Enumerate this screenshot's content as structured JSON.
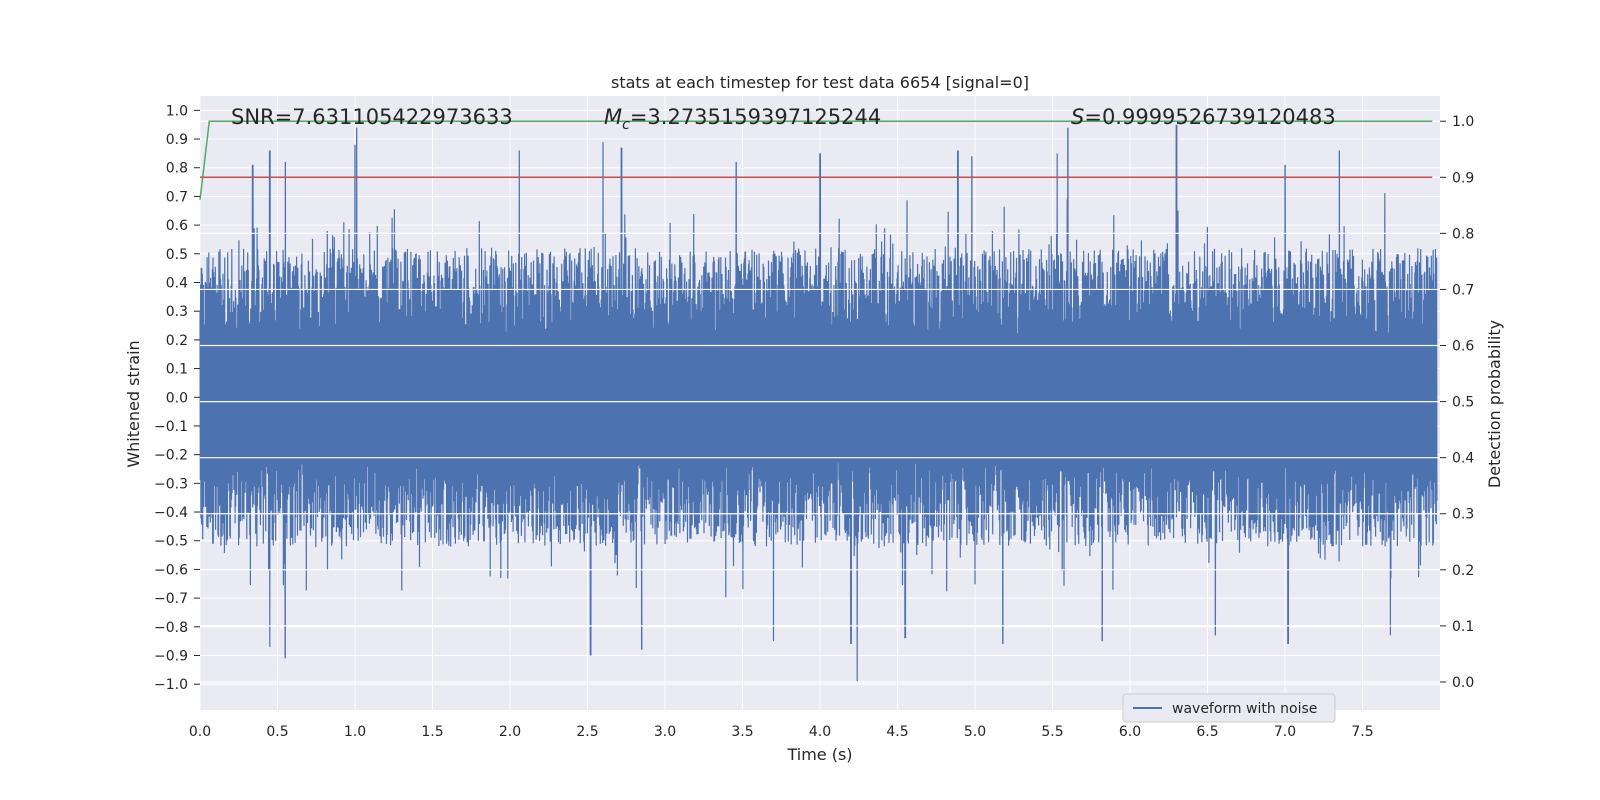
{
  "chart_data": {
    "type": "line",
    "title": "stats at each timestep for test data 6654 [signal=0]",
    "xlabel": "Time (s)",
    "ylabel": "Whitened strain",
    "y2label": "Detection probability",
    "xlim": [
      0.0,
      8.0
    ],
    "ylim": [
      -1.09,
      1.05
    ],
    "y2lim": [
      -0.05,
      1.045
    ],
    "x_ticks": [
      "0.0",
      "0.5",
      "1.0",
      "1.5",
      "2.0",
      "2.5",
      "3.0",
      "3.5",
      "4.0",
      "4.5",
      "5.0",
      "5.5",
      "6.0",
      "6.5",
      "7.0",
      "7.5"
    ],
    "y_ticks": [
      "1.0",
      "0.9",
      "0.8",
      "0.7",
      "0.6",
      "0.5",
      "0.4",
      "0.3",
      "0.2",
      "0.1",
      "0.0",
      "−0.1",
      "−0.2",
      "−0.3",
      "−0.4",
      "−0.5",
      "−0.6",
      "−0.7",
      "−0.8",
      "−0.9",
      "−1.0"
    ],
    "y2_ticks": [
      "1.0",
      "0.9",
      "0.8",
      "0.7",
      "0.6",
      "0.5",
      "0.4",
      "0.3",
      "0.2",
      "0.1",
      "0.0"
    ],
    "grid": true,
    "legend_position": "lower-right",
    "annotations": {
      "snr": "SNR=7.631105422973633",
      "mc_symbol": "M",
      "mc_sub": "c",
      "mc_value": "=3.2735159397125244",
      "s_symbol": "S",
      "s_value": "=0.9999526739120483"
    },
    "series": [
      {
        "name": "waveform with noise",
        "axis": "left",
        "color": "#4c72b0",
        "description_of_values": "dense noise, t from 0 to ~7.98 s, typical amplitude ±0.55",
        "duration": 7.98,
        "noise_peaks_pos": [
          [
            0.34,
            0.81
          ],
          [
            0.45,
            0.86
          ],
          [
            0.55,
            0.82
          ],
          [
            1.0,
            0.88
          ],
          [
            1.01,
            0.94
          ],
          [
            2.06,
            0.86
          ],
          [
            2.6,
            0.89
          ],
          [
            2.72,
            0.87
          ],
          [
            3.46,
            0.82
          ],
          [
            4.0,
            0.85
          ],
          [
            4.89,
            0.86
          ],
          [
            4.98,
            0.84
          ],
          [
            5.53,
            0.85
          ],
          [
            5.6,
            0.94
          ],
          [
            6.3,
            0.95
          ],
          [
            7.0,
            0.81
          ],
          [
            7.35,
            0.86
          ]
        ],
        "noise_peaks_neg": [
          [
            0.55,
            -0.91
          ],
          [
            0.45,
            -0.87
          ],
          [
            2.52,
            -0.9
          ],
          [
            2.85,
            -0.88
          ],
          [
            3.7,
            -0.85
          ],
          [
            4.24,
            -0.99
          ],
          [
            4.2,
            -0.86
          ],
          [
            4.55,
            -0.84
          ],
          [
            5.18,
            -0.86
          ],
          [
            5.82,
            -0.85
          ],
          [
            6.55,
            -0.83
          ],
          [
            7.02,
            -0.86
          ],
          [
            7.68,
            -0.83
          ]
        ]
      },
      {
        "name": "",
        "axis": "right",
        "color": "#55a868",
        "x": [
          0.0,
          0.03,
          0.06,
          0.1,
          7.95
        ],
        "y": [
          0.86,
          0.93,
          1.0,
          1.0,
          1.0
        ]
      },
      {
        "name": "",
        "axis": "right",
        "color": "#c44e52",
        "x": [
          0.0,
          7.95
        ],
        "y": [
          0.9,
          0.9
        ]
      }
    ]
  }
}
